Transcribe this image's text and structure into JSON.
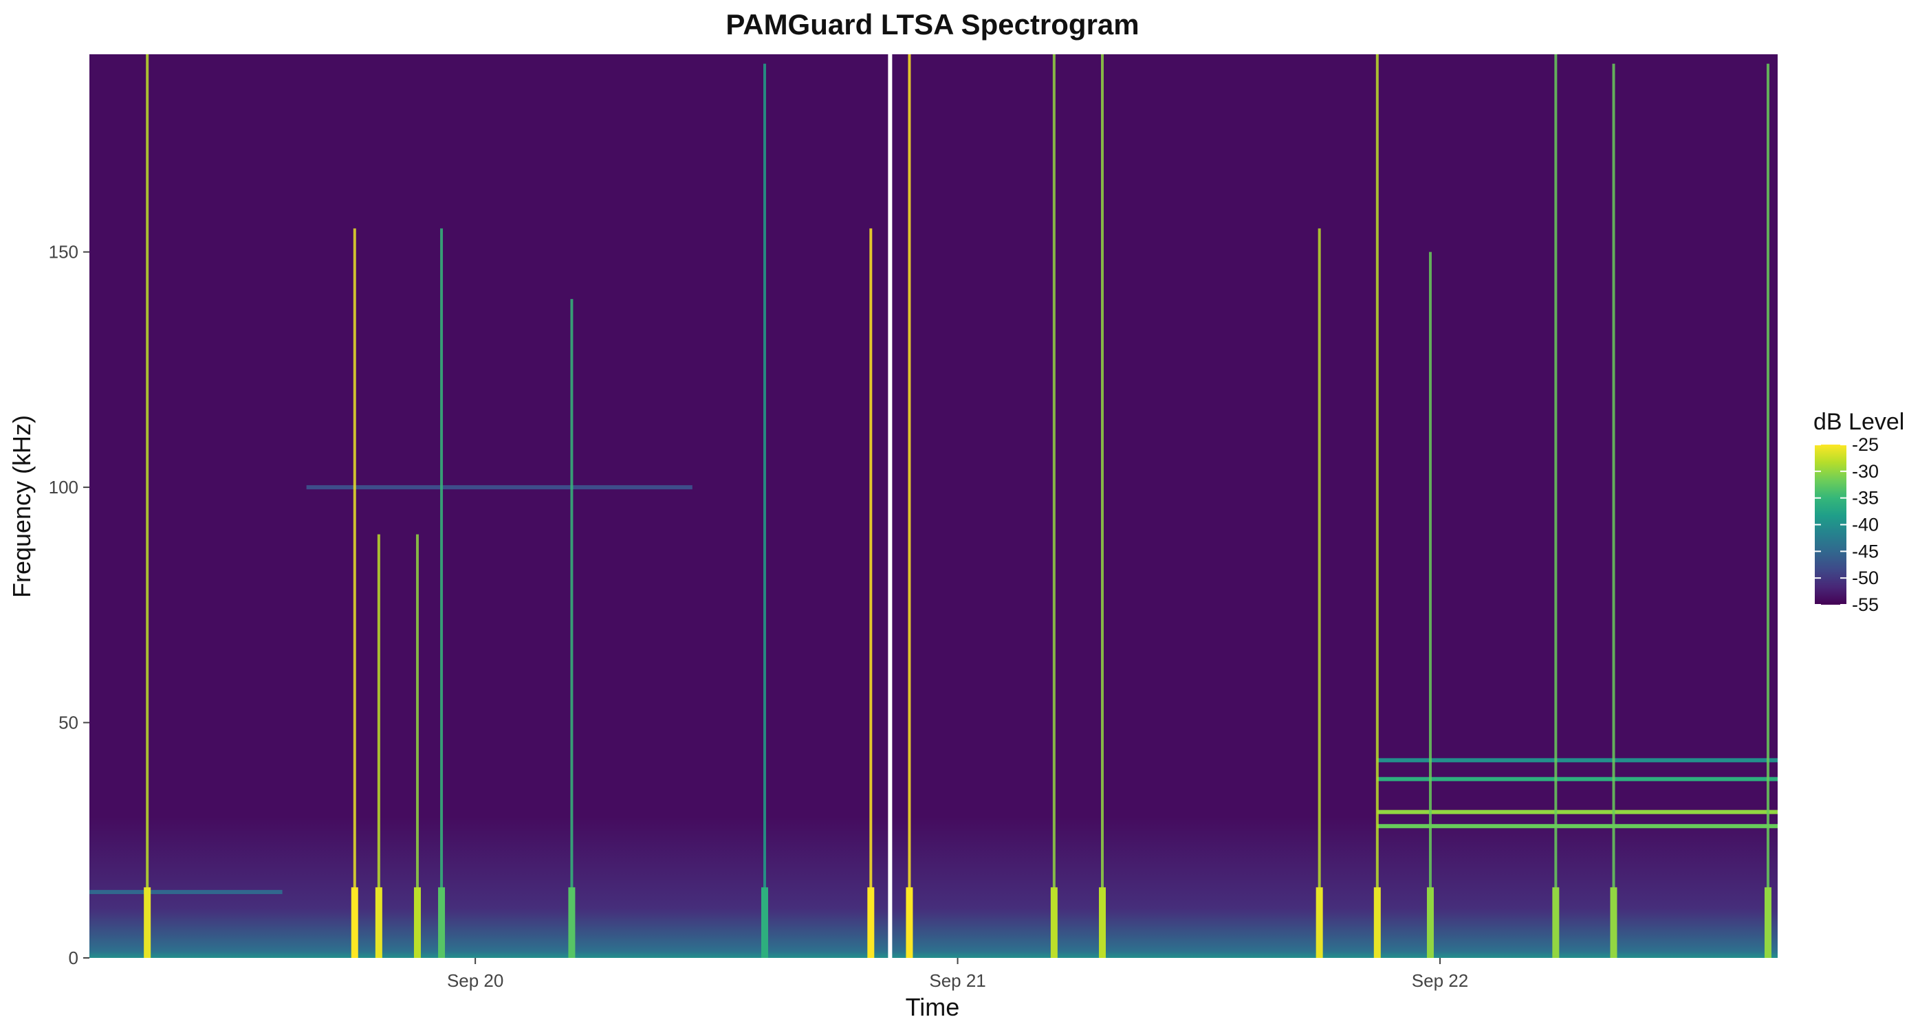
{
  "chart_data": {
    "type": "heatmap",
    "title": "PAMGuard LTSA Spectrogram",
    "xlabel": "Time",
    "ylabel": "Frequency (kHz)",
    "x_ticks": [
      "Sep 20",
      "Sep 21",
      "Sep 22"
    ],
    "x_tick_days": [
      20,
      21,
      22
    ],
    "xlim_days": [
      19.2,
      22.7
    ],
    "y_ticks": [
      "0",
      "50",
      "100",
      "150"
    ],
    "y_tick_values": [
      0,
      50,
      100,
      150
    ],
    "ylim": [
      0,
      192
    ],
    "grid": false,
    "colorscale": "viridis",
    "colormap": [
      "#440154",
      "#482777",
      "#3e4a89",
      "#31688e",
      "#26828e",
      "#1f9e89",
      "#35b779",
      "#6ece58",
      "#b5de2b",
      "#fde725"
    ],
    "legend": {
      "title": "dB Level",
      "position": "right",
      "ticks": [
        "-25",
        "-30",
        "-35",
        "-40",
        "-45",
        "-50",
        "-55"
      ],
      "tick_values": [
        -25,
        -30,
        -35,
        -40,
        -45,
        -50,
        -55
      ],
      "range": [
        -55,
        -25
      ]
    },
    "background_db": -54,
    "data_gap_day": 20.86,
    "broadband_events": [
      {
        "day": 19.32,
        "db": -28,
        "fmax_khz": 192
      },
      {
        "day": 19.75,
        "db": -26,
        "fmax_khz": 155
      },
      {
        "day": 19.8,
        "db": -28,
        "fmax_khz": 90
      },
      {
        "day": 19.88,
        "db": -30,
        "fmax_khz": 90
      },
      {
        "day": 19.93,
        "db": -35,
        "fmax_khz": 155
      },
      {
        "day": 20.2,
        "db": -35,
        "fmax_khz": 140
      },
      {
        "day": 20.6,
        "db": -38,
        "fmax_khz": 190
      },
      {
        "day": 20.82,
        "db": -24,
        "fmax_khz": 155
      },
      {
        "day": 20.9,
        "db": -24,
        "fmax_khz": 192
      },
      {
        "day": 21.2,
        "db": -30,
        "fmax_khz": 192
      },
      {
        "day": 21.3,
        "db": -30,
        "fmax_khz": 192
      },
      {
        "day": 21.75,
        "db": -28,
        "fmax_khz": 155
      },
      {
        "day": 21.87,
        "db": -28,
        "fmax_khz": 192
      },
      {
        "day": 21.98,
        "db": -32,
        "fmax_khz": 150
      },
      {
        "day": 22.24,
        "db": -32,
        "fmax_khz": 192
      },
      {
        "day": 22.36,
        "db": -32,
        "fmax_khz": 190
      },
      {
        "day": 22.68,
        "db": -32,
        "fmax_khz": 190
      }
    ],
    "tonal_bands": [
      {
        "khz": 28,
        "day_start": 21.87,
        "day_end": 22.7,
        "db": -32
      },
      {
        "khz": 31,
        "day_start": 21.87,
        "day_end": 22.7,
        "db": -30
      },
      {
        "khz": 38,
        "day_start": 21.87,
        "day_end": 22.7,
        "db": -36
      },
      {
        "khz": 42,
        "day_start": 21.87,
        "day_end": 22.7,
        "db": -40
      },
      {
        "khz": 100,
        "day_start": 19.65,
        "day_end": 20.45,
        "db": -48
      },
      {
        "khz": 14,
        "day_start": 19.2,
        "day_end": 19.6,
        "db": -45
      }
    ]
  }
}
